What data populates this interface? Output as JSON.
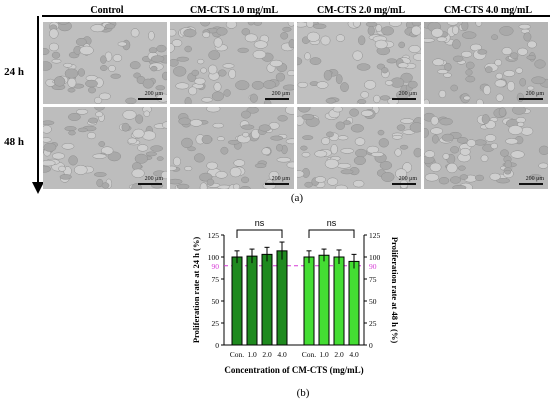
{
  "panel_a": {
    "label": "(a)",
    "columns": [
      "Control",
      "CM-CTS 1.0 mg/mL",
      "CM-CTS 2.0 mg/mL",
      "CM-CTS 4.0 mg/mL"
    ],
    "rows": [
      "24 h",
      "48 h"
    ],
    "scale_bar": "200 μm"
  },
  "panel_b": {
    "label": "(b)"
  },
  "chart_data": {
    "type": "bar",
    "xlabel": "Concentration of CM-CTS (mg/mL)",
    "ylabel_left": "Proliferation rate at 24 h (%)",
    "ylabel_right": "Proliferation rate at 48 h (%)",
    "ylim": [
      0,
      125
    ],
    "yticks": [
      0,
      25,
      50,
      75,
      100,
      125
    ],
    "reference_line": {
      "value": 90,
      "label": "90",
      "color": "#d63ad6",
      "style": "dashed"
    },
    "groups": [
      {
        "axis": "left",
        "categories": [
          "Con.",
          "1.0",
          "2.0",
          "4.0"
        ],
        "values": [
          100,
          101,
          103,
          107
        ],
        "errors": [
          7,
          8,
          8,
          10
        ],
        "color": "#1f8a1f",
        "annotation": "ns"
      },
      {
        "axis": "right",
        "categories": [
          "Con.",
          "1.0",
          "2.0",
          "4.0"
        ],
        "values": [
          100,
          102,
          100,
          95
        ],
        "errors": [
          7,
          7,
          8,
          8
        ],
        "color": "#44dd33",
        "annotation": "ns"
      }
    ]
  }
}
